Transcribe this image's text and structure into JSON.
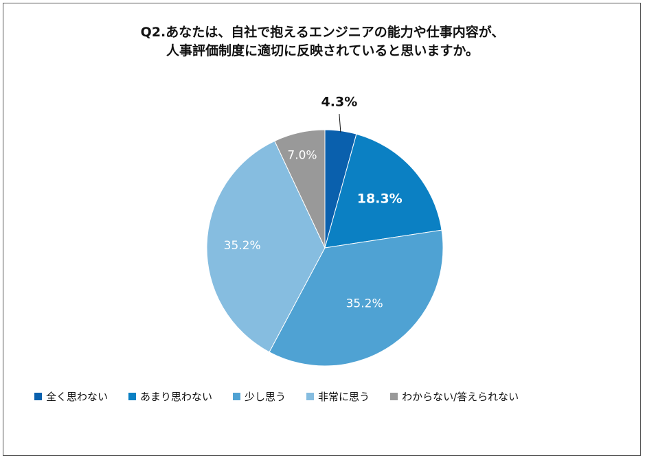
{
  "chart_data": {
    "type": "pie",
    "title": [
      "Q2.あなたは、自社で抱えるエンジニアの能力や仕事内容が、",
      "人事評価制度に適切に反映されていると思いますか。"
    ],
    "categories": [
      "全く思わない",
      "あまり思わない",
      "少し思う",
      "非常に思う",
      "わからない/答えられない"
    ],
    "values": [
      4.3,
      18.3,
      35.2,
      35.2,
      7.0
    ],
    "labels": [
      "4.3%",
      "18.3%",
      "35.2%",
      "35.2%",
      "7.0%"
    ],
    "colors": [
      "#0a60ad",
      "#0b80c3",
      "#4fa2d3",
      "#86bde0",
      "#999999"
    ],
    "label_colors": [
      "#111111",
      "#ffffff",
      "#ffffff",
      "#ffffff",
      "#ffffff"
    ],
    "label_bold": [
      true,
      true,
      false,
      false,
      false
    ],
    "start_angle_deg": 0,
    "direction": "clockwise",
    "legend_position": "bottom"
  }
}
